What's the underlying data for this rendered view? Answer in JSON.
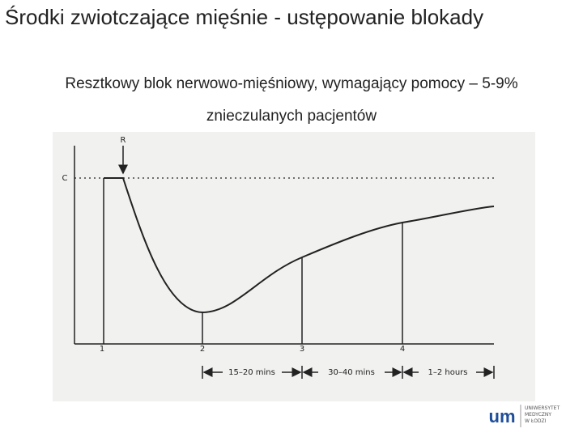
{
  "title": "Środki zwiotczające mięśnie - ustępowanie blokady",
  "subtitle": "Resztkowy blok nerwowo-mięśniowy, wymagający pomocy – 5-9% znieczulanych pacjentów",
  "figure": {
    "reversal_label": "R",
    "control_label": "C",
    "points": [
      "1",
      "2",
      "3",
      "4"
    ],
    "intervals": [
      "15–20 mins",
      "30–40 mins",
      "1–2 hours"
    ]
  },
  "logo": {
    "mark": "um",
    "lines": [
      "UNIWERSYTET",
      "MEDYCZNY",
      "W ŁODZI"
    ]
  }
}
